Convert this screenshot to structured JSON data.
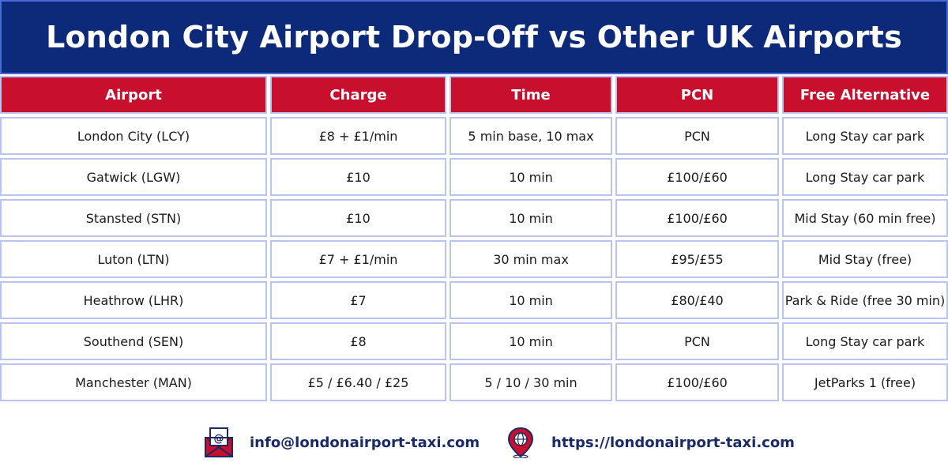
{
  "title": "London City Airport Drop-Off vs Other UK Airports",
  "table": {
    "headers": [
      "Airport",
      "Charge",
      "Time",
      "PCN",
      "Free Alternative"
    ],
    "rows": [
      [
        "London City (LCY)",
        "£8 + £1/min",
        "5 min base, 10 max",
        "PCN",
        "Long Stay car park"
      ],
      [
        "Gatwick (LGW)",
        "£10",
        "10 min",
        "£100/£60",
        "Long Stay car park"
      ],
      [
        "Stansted (STN)",
        "£10",
        "10 min",
        "£100/£60",
        "Mid Stay (60 min free)"
      ],
      [
        "Luton (LTN)",
        "£7 + £1/min",
        "30 min max",
        "£95/£55",
        "Mid Stay (free)"
      ],
      [
        "Heathrow (LHR)",
        "£7",
        "10 min",
        "£80/£40",
        "Park & Ride (free 30 min)"
      ],
      [
        "Southend (SEN)",
        "£8",
        "10 min",
        "PCN",
        "Long Stay car park"
      ],
      [
        "Manchester (MAN)",
        "£5 / £6.40 / £25",
        "5 / 10 / 30 min",
        "£100/£60",
        "JetParks 1 (free)"
      ]
    ]
  },
  "footer": {
    "email": "info@londonairport-taxi.com",
    "email_icon": "email-envelope-icon",
    "website": "https://londonairport-taxi.com",
    "website_icon": "globe-pin-icon"
  },
  "colors": {
    "banner": "#0d2a7a",
    "header_red": "#c8102e",
    "cell_border": "#b9c4f2",
    "footer_text": "#1b2a66"
  }
}
